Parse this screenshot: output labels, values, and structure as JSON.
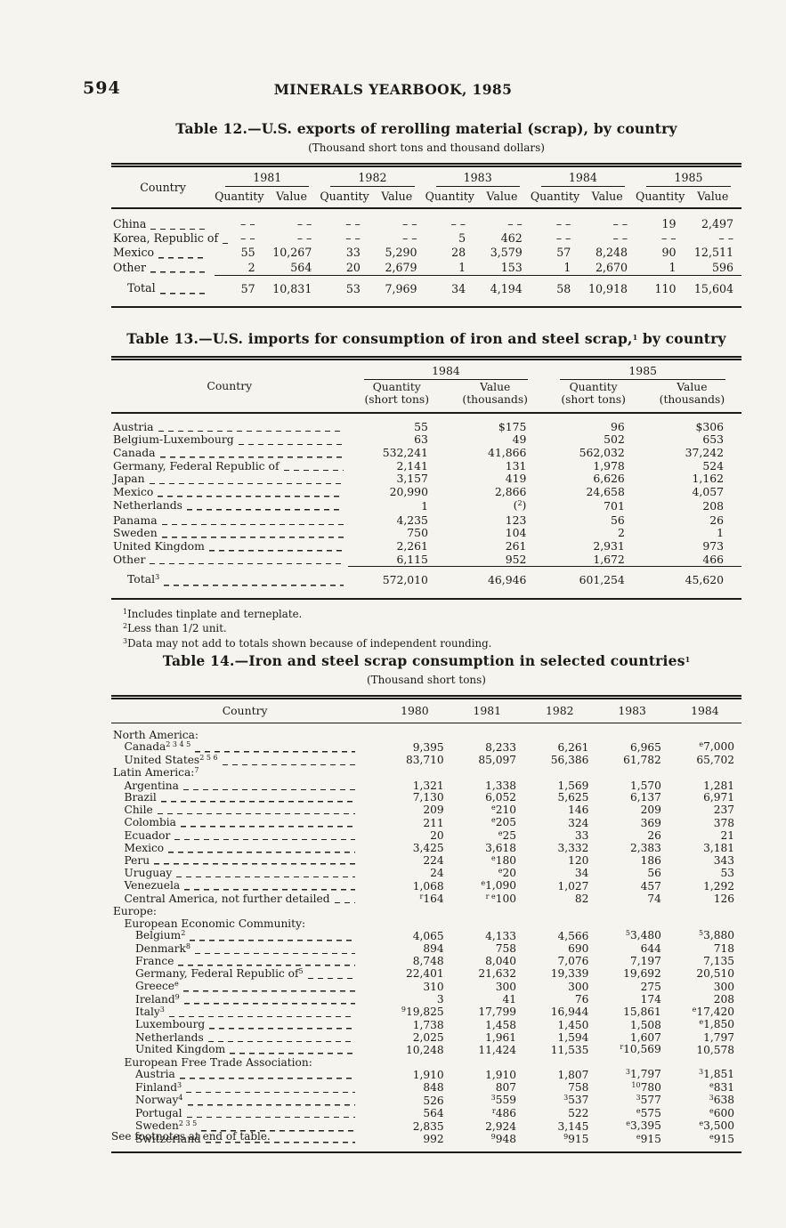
{
  "page": {
    "number": "594",
    "header": "MINERALS YEARBOOK, 1985"
  },
  "table12": {
    "title": "Table 12.—U.S. exports of rerolling material (scrap), by country",
    "subtitle": "(Thousand short tons and thousand dollars)",
    "country_header": "Country",
    "years": [
      "1981",
      "1982",
      "1983",
      "1984",
      "1985"
    ],
    "subheaders": [
      "Quantity",
      "Value"
    ],
    "rows": [
      {
        "name": "China",
        "cells": [
          "– –",
          "– –",
          "– –",
          "– –",
          "– –",
          "– –",
          "– –",
          "– –",
          "19",
          "2,497"
        ]
      },
      {
        "name": "Korea, Republic of",
        "cells": [
          "– –",
          "– –",
          "– –",
          "– –",
          "5",
          "462",
          "– –",
          "– –",
          "– –",
          "– –"
        ]
      },
      {
        "name": "Mexico",
        "cells": [
          "55",
          "10,267",
          "33",
          "5,290",
          "28",
          "3,579",
          "57",
          "8,248",
          "90",
          "12,511"
        ]
      },
      {
        "name": "Other",
        "cells": [
          "2",
          "564",
          "20",
          "2,679",
          "1",
          "153",
          "1",
          "2,670",
          "1",
          "596"
        ]
      }
    ],
    "total": {
      "label": "Total",
      "cells": [
        "57",
        "10,831",
        "53",
        "7,969",
        "34",
        "4,194",
        "58",
        "10,918",
        "110",
        "15,604"
      ]
    }
  },
  "table13": {
    "title": "Table 13.—U.S. imports for consumption of iron and steel scrap,^{1} by country",
    "country_header": "Country",
    "years": [
      "1984",
      "1985"
    ],
    "subheaders": [
      {
        "l1": "Quantity",
        "l2": "(short tons)"
      },
      {
        "l1": "Value",
        "l2": "(thousands)"
      },
      {
        "l1": "Quantity",
        "l2": "(short tons)"
      },
      {
        "l1": "Value",
        "l2": "(thousands)"
      }
    ],
    "rows": [
      {
        "name": "Austria",
        "cells": [
          "55",
          "$175",
          "96",
          "$306"
        ]
      },
      {
        "name": "Belgium-Luxembourg",
        "cells": [
          "63",
          "49",
          "502",
          "653"
        ]
      },
      {
        "name": "Canada",
        "cells": [
          "532,241",
          "41,866",
          "562,032",
          "37,242"
        ]
      },
      {
        "name": "Germany, Federal Republic of",
        "cells": [
          "2,141",
          "131",
          "1,978",
          "524"
        ]
      },
      {
        "name": "Japan",
        "cells": [
          "3,157",
          "419",
          "6,626",
          "1,162"
        ]
      },
      {
        "name": "Mexico",
        "cells": [
          "20,990",
          "2,866",
          "24,658",
          "4,057"
        ]
      },
      {
        "name": "Netherlands",
        "cells": [
          "1",
          "(^{2})",
          "701",
          "208"
        ]
      },
      {
        "name": "Panama",
        "cells": [
          "4,235",
          "123",
          "56",
          "26"
        ]
      },
      {
        "name": "Sweden",
        "cells": [
          "750",
          "104",
          "2",
          "1"
        ]
      },
      {
        "name": "United Kingdom",
        "cells": [
          "2,261",
          "261",
          "2,931",
          "973"
        ]
      },
      {
        "name": "Other",
        "cells": [
          "6,115",
          "952",
          "1,672",
          "466"
        ]
      }
    ],
    "total": {
      "label": "Total^{3}",
      "cells": [
        "572,010",
        "46,946",
        "601,254",
        "45,620"
      ]
    },
    "footnotes": [
      "^{1}Includes tinplate and terneplate.",
      "^{2}Less than 1/2 unit.",
      "^{3}Data may not add to totals shown because of independent rounding."
    ]
  },
  "table14": {
    "title": "Table 14.—Iron and steel scrap consumption in selected countries^{1}",
    "subtitle": "(Thousand short tons)",
    "country_header": "Country",
    "years": [
      "1980",
      "1981",
      "1982",
      "1983",
      "1984"
    ],
    "rows": [
      {
        "name": "North America:",
        "level": 0,
        "section": true
      },
      {
        "name": "Canada^{2 3 4 5}",
        "level": 1,
        "cells": [
          "9,395",
          "8,233",
          "6,261",
          "6,965",
          "^{e}7,000"
        ]
      },
      {
        "name": "United States^{2 5 6}",
        "level": 1,
        "cells": [
          "83,710",
          "85,097",
          "56,386",
          "61,782",
          "65,702"
        ]
      },
      {
        "name": "Latin America:^{7}",
        "level": 0,
        "section": true
      },
      {
        "name": "Argentina",
        "level": 1,
        "cells": [
          "1,321",
          "1,338",
          "1,569",
          "1,570",
          "1,281"
        ]
      },
      {
        "name": "Brazil",
        "level": 1,
        "cells": [
          "7,130",
          "6,052",
          "5,625",
          "6,137",
          "6,971"
        ]
      },
      {
        "name": "Chile",
        "level": 1,
        "cells": [
          "209",
          "^{e}210",
          "146",
          "209",
          "237"
        ]
      },
      {
        "name": "Colombia",
        "level": 1,
        "cells": [
          "211",
          "^{e}205",
          "324",
          "369",
          "378"
        ]
      },
      {
        "name": "Ecuador",
        "level": 1,
        "cells": [
          "20",
          "^{e}25",
          "33",
          "26",
          "21"
        ]
      },
      {
        "name": "Mexico",
        "level": 1,
        "cells": [
          "3,425",
          "3,618",
          "3,332",
          "2,383",
          "3,181"
        ]
      },
      {
        "name": "Peru",
        "level": 1,
        "cells": [
          "224",
          "^{e}180",
          "120",
          "186",
          "343"
        ]
      },
      {
        "name": "Uruguay",
        "level": 1,
        "cells": [
          "24",
          "^{e}20",
          "34",
          "56",
          "53"
        ]
      },
      {
        "name": "Venezuela",
        "level": 1,
        "cells": [
          "1,068",
          "^{e}1,090",
          "1,027",
          "457",
          "1,292"
        ]
      },
      {
        "name": "Central America, not further detailed",
        "level": 1,
        "cells": [
          "^{r}164",
          "^{r e}100",
          "82",
          "74",
          "126"
        ]
      },
      {
        "name": "Europe:",
        "level": 0,
        "section": true
      },
      {
        "name": "European Economic Community:",
        "level": 1,
        "section": true
      },
      {
        "name": "Belgium^{2}",
        "level": 2,
        "cells": [
          "4,065",
          "4,133",
          "4,566",
          "^{5}3,480",
          "^{5}3,880"
        ]
      },
      {
        "name": "Denmark^{8}",
        "level": 2,
        "cells": [
          "894",
          "758",
          "690",
          "644",
          "718"
        ]
      },
      {
        "name": "France",
        "level": 2,
        "cells": [
          "8,748",
          "8,040",
          "7,076",
          "7,197",
          "7,135"
        ]
      },
      {
        "name": "Germany, Federal Republic of^{5}",
        "level": 2,
        "cells": [
          "22,401",
          "21,632",
          "19,339",
          "19,692",
          "20,510"
        ]
      },
      {
        "name": "Greece^{e}",
        "level": 2,
        "cells": [
          "310",
          "300",
          "300",
          "275",
          "300"
        ]
      },
      {
        "name": "Ireland^{9}",
        "level": 2,
        "cells": [
          "3",
          "41",
          "76",
          "174",
          "208"
        ]
      },
      {
        "name": "Italy^{3}",
        "level": 2,
        "cells": [
          "^{9}19,825",
          "17,799",
          "16,944",
          "15,861",
          "^{e}17,420"
        ]
      },
      {
        "name": "Luxembourg",
        "level": 2,
        "cells": [
          "1,738",
          "1,458",
          "1,450",
          "1,508",
          "^{e}1,850"
        ]
      },
      {
        "name": "Netherlands",
        "level": 2,
        "cells": [
          "2,025",
          "1,961",
          "1,594",
          "1,607",
          "1,797"
        ]
      },
      {
        "name": "United Kingdom",
        "level": 2,
        "cells": [
          "10,248",
          "11,424",
          "11,535",
          "^{r}10,569",
          "10,578"
        ]
      },
      {
        "name": "European Free Trade Association:",
        "level": 1,
        "section": true
      },
      {
        "name": "Austria",
        "level": 2,
        "cells": [
          "1,910",
          "1,910",
          "1,807",
          "^{3}1,797",
          "^{3}1,851"
        ]
      },
      {
        "name": "Finland^{3}",
        "level": 2,
        "cells": [
          "848",
          "807",
          "758",
          "^{10}780",
          "^{e}831"
        ]
      },
      {
        "name": "Norway^{4}",
        "level": 2,
        "cells": [
          "526",
          "^{3}559",
          "^{3}537",
          "^{3}577",
          "^{3}638"
        ]
      },
      {
        "name": "Portugal",
        "level": 2,
        "cells": [
          "564",
          "^{r}486",
          "522",
          "^{e}575",
          "^{e}600"
        ]
      },
      {
        "name": "Sweden^{2 3 5}",
        "level": 2,
        "cells": [
          "2,835",
          "2,924",
          "3,145",
          "^{e}3,395",
          "^{e}3,500"
        ]
      },
      {
        "name": "Switzerland",
        "level": 2,
        "cells": [
          "992",
          "^{9}948",
          "^{9}915",
          "^{e}915",
          "^{e}915"
        ]
      }
    ],
    "endnote": "See footnotes at end of table."
  }
}
